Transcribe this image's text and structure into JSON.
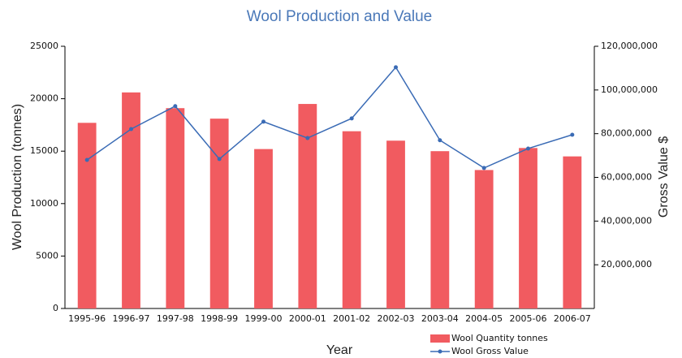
{
  "chart_data": {
    "type": "bar",
    "title": "Wool Production and Value",
    "x_label": "Year",
    "y_label": "Wool Production (tonnes)",
    "y2_label": "Gross Value $",
    "categories": [
      "1995-96",
      "1996-97",
      "1997-98",
      "1998-99",
      "1999-00",
      "2000-01",
      "2001-02",
      "2002-03",
      "2003-04",
      "2004-05",
      "2005-06",
      "2006-07"
    ],
    "series": [
      {
        "name": "Wool Quantity tonnes",
        "type": "bar",
        "color": "#f15b60",
        "values": [
          17700,
          20600,
          19100,
          18100,
          15200,
          19500,
          16900,
          16000,
          15000,
          13200,
          15300,
          14500
        ]
      },
      {
        "name": "Wool Gross Value",
        "type": "line",
        "axis": "y2",
        "color": "#3a6bb5",
        "values": [
          68000000,
          82100000,
          92600000,
          68400000,
          85500000,
          78000000,
          87000000,
          110400000,
          77000000,
          64300000,
          73200000,
          79500000
        ]
      }
    ],
    "ylim": [
      0,
      25000
    ],
    "yticks": [
      0,
      5000,
      10000,
      15000,
      20000,
      25000
    ],
    "y2lim": [
      0,
      120000000
    ],
    "y2ticks": [
      {
        "value": 20000000,
        "label": "20,000,000"
      },
      {
        "value": 40000000,
        "label": "40,000,000"
      },
      {
        "value": 60000000,
        "label": "60,000,000"
      },
      {
        "value": 80000000,
        "label": "80,000,000"
      },
      {
        "value": 100000000,
        "label": "100,000,000"
      },
      {
        "value": 120000000,
        "label": "120,000,000"
      }
    ],
    "grid": false
  }
}
